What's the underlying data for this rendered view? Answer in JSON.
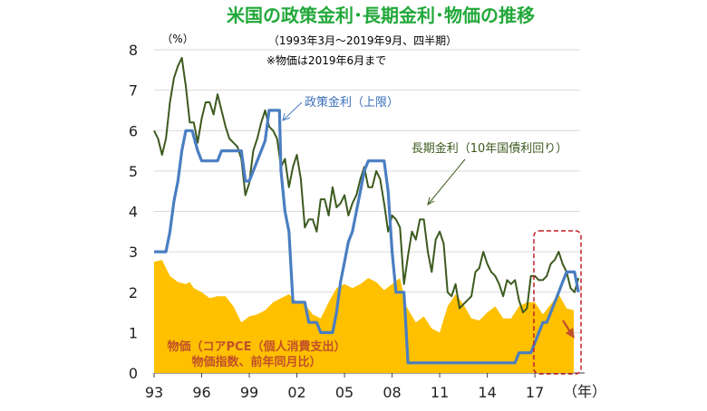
{
  "chart_data": {
    "type": "line",
    "title": "米国の政策金利･長期金利･物価の推移",
    "subtitle": "（1993年3月～2019年9月、四半期）",
    "note": "※物価は2019年6月まで",
    "y_unit": "（%）",
    "x_unit": "（年）",
    "ylim": [
      0,
      8
    ],
    "xlim": [
      1993.0,
      2019.85
    ],
    "yticks": [
      "0",
      "1",
      "2",
      "3",
      "4",
      "5",
      "6",
      "7",
      "8"
    ],
    "xticks": [
      {
        "label": "93",
        "value": 1993
      },
      {
        "label": "96",
        "value": 1996
      },
      {
        "label": "99",
        "value": 1999
      },
      {
        "label": "02",
        "value": 2002
      },
      {
        "label": "05",
        "value": 2005
      },
      {
        "label": "08",
        "value": 2008
      },
      {
        "label": "11",
        "value": 2011
      },
      {
        "label": "14",
        "value": 2014
      },
      {
        "label": "17",
        "value": 2017
      }
    ],
    "series": [
      {
        "name": "物価（コアPCE（個人消費支出）物価指数、前年同月比）",
        "kind": "area",
        "color": "#ffc000",
        "points": [
          [
            1993.0,
            2.75
          ],
          [
            1993.5,
            2.8
          ],
          [
            1993.75,
            2.6
          ],
          [
            1994.0,
            2.4
          ],
          [
            1994.5,
            2.25
          ],
          [
            1995.0,
            2.2
          ],
          [
            1995.25,
            2.25
          ],
          [
            1995.5,
            2.1
          ],
          [
            1996.0,
            2.0
          ],
          [
            1996.5,
            1.85
          ],
          [
            1997.0,
            1.9
          ],
          [
            1997.5,
            1.9
          ],
          [
            1998.0,
            1.65
          ],
          [
            1998.5,
            1.25
          ],
          [
            1999.0,
            1.4
          ],
          [
            1999.5,
            1.45
          ],
          [
            2000.0,
            1.55
          ],
          [
            2000.5,
            1.75
          ],
          [
            2001.0,
            1.85
          ],
          [
            2001.5,
            1.95
          ],
          [
            2002.0,
            1.75
          ],
          [
            2002.5,
            1.7
          ],
          [
            2003.0,
            1.45
          ],
          [
            2003.5,
            1.35
          ],
          [
            2004.0,
            1.75
          ],
          [
            2004.5,
            2.1
          ],
          [
            2005.0,
            2.2
          ],
          [
            2005.5,
            2.1
          ],
          [
            2006.0,
            2.2
          ],
          [
            2006.5,
            2.35
          ],
          [
            2007.0,
            2.25
          ],
          [
            2007.5,
            2.05
          ],
          [
            2008.0,
            2.2
          ],
          [
            2008.5,
            2.35
          ],
          [
            2008.9,
            1.65
          ],
          [
            2009.5,
            1.25
          ],
          [
            2010.0,
            1.4
          ],
          [
            2010.5,
            1.1
          ],
          [
            2011.0,
            1.0
          ],
          [
            2011.5,
            1.65
          ],
          [
            2012.0,
            1.95
          ],
          [
            2012.5,
            1.7
          ],
          [
            2013.0,
            1.35
          ],
          [
            2013.5,
            1.3
          ],
          [
            2014.0,
            1.5
          ],
          [
            2014.5,
            1.65
          ],
          [
            2015.0,
            1.35
          ],
          [
            2015.5,
            1.35
          ],
          [
            2016.0,
            1.65
          ],
          [
            2016.5,
            1.75
          ],
          [
            2017.0,
            1.75
          ],
          [
            2017.5,
            1.45
          ],
          [
            2018.0,
            1.7
          ],
          [
            2018.5,
            1.95
          ],
          [
            2019.0,
            1.6
          ],
          [
            2019.45,
            1.55
          ]
        ]
      },
      {
        "name": "長期金利（10年国債利回り）",
        "kind": "line",
        "color": "#3c5a1e",
        "points": [
          [
            1993.0,
            6.0
          ],
          [
            1993.25,
            5.8
          ],
          [
            1993.5,
            5.4
          ],
          [
            1993.75,
            5.8
          ],
          [
            1994.0,
            6.7
          ],
          [
            1994.25,
            7.3
          ],
          [
            1994.5,
            7.6
          ],
          [
            1994.75,
            7.8
          ],
          [
            1995.0,
            7.1
          ],
          [
            1995.25,
            6.2
          ],
          [
            1995.5,
            6.2
          ],
          [
            1995.75,
            5.7
          ],
          [
            1996.0,
            6.3
          ],
          [
            1996.25,
            6.7
          ],
          [
            1996.5,
            6.7
          ],
          [
            1996.75,
            6.4
          ],
          [
            1997.0,
            6.9
          ],
          [
            1997.25,
            6.5
          ],
          [
            1997.5,
            6.1
          ],
          [
            1997.75,
            5.8
          ],
          [
            1998.0,
            5.7
          ],
          [
            1998.25,
            5.6
          ],
          [
            1998.5,
            5.3
          ],
          [
            1998.75,
            4.4
          ],
          [
            1999.0,
            4.7
          ],
          [
            1999.25,
            5.5
          ],
          [
            1999.5,
            5.8
          ],
          [
            1999.75,
            6.2
          ],
          [
            2000.0,
            6.5
          ],
          [
            2000.25,
            6.1
          ],
          [
            2000.5,
            6.0
          ],
          [
            2000.75,
            5.8
          ],
          [
            2001.0,
            5.1
          ],
          [
            2001.25,
            5.3
          ],
          [
            2001.5,
            4.6
          ],
          [
            2001.75,
            5.1
          ],
          [
            2002.0,
            5.4
          ],
          [
            2002.25,
            4.8
          ],
          [
            2002.5,
            3.6
          ],
          [
            2002.75,
            3.8
          ],
          [
            2003.0,
            3.8
          ],
          [
            2003.25,
            3.5
          ],
          [
            2003.5,
            4.3
          ],
          [
            2003.75,
            4.3
          ],
          [
            2004.0,
            3.9
          ],
          [
            2004.25,
            4.6
          ],
          [
            2004.5,
            4.1
          ],
          [
            2004.75,
            4.2
          ],
          [
            2005.0,
            4.4
          ],
          [
            2005.25,
            3.9
          ],
          [
            2005.5,
            4.2
          ],
          [
            2005.75,
            4.4
          ],
          [
            2006.0,
            4.8
          ],
          [
            2006.25,
            5.1
          ],
          [
            2006.5,
            4.6
          ],
          [
            2006.75,
            4.6
          ],
          [
            2007.0,
            5.0
          ],
          [
            2007.25,
            4.8
          ],
          [
            2007.5,
            4.2
          ],
          [
            2007.75,
            3.5
          ],
          [
            2008.0,
            3.9
          ],
          [
            2008.25,
            3.8
          ],
          [
            2008.5,
            3.6
          ],
          [
            2008.75,
            2.2
          ],
          [
            2009.0,
            2.9
          ],
          [
            2009.25,
            3.5
          ],
          [
            2009.5,
            3.3
          ],
          [
            2009.75,
            3.8
          ],
          [
            2010.0,
            3.8
          ],
          [
            2010.25,
            3.0
          ],
          [
            2010.5,
            2.5
          ],
          [
            2010.75,
            3.3
          ],
          [
            2011.0,
            3.5
          ],
          [
            2011.25,
            3.2
          ],
          [
            2011.5,
            2.0
          ],
          [
            2011.75,
            1.9
          ],
          [
            2012.0,
            2.2
          ],
          [
            2012.25,
            1.6
          ],
          [
            2012.5,
            1.7
          ],
          [
            2012.75,
            1.8
          ],
          [
            2013.0,
            1.9
          ],
          [
            2013.25,
            2.5
          ],
          [
            2013.5,
            2.6
          ],
          [
            2013.75,
            3.0
          ],
          [
            2014.0,
            2.7
          ],
          [
            2014.25,
            2.5
          ],
          [
            2014.5,
            2.4
          ],
          [
            2014.75,
            2.2
          ],
          [
            2015.0,
            1.9
          ],
          [
            2015.25,
            2.3
          ],
          [
            2015.5,
            2.2
          ],
          [
            2015.75,
            2.3
          ],
          [
            2016.0,
            1.8
          ],
          [
            2016.25,
            1.5
          ],
          [
            2016.5,
            1.6
          ],
          [
            2016.75,
            2.4
          ],
          [
            2017.0,
            2.4
          ],
          [
            2017.25,
            2.3
          ],
          [
            2017.5,
            2.3
          ],
          [
            2017.75,
            2.4
          ],
          [
            2018.0,
            2.7
          ],
          [
            2018.25,
            2.8
          ],
          [
            2018.5,
            3.0
          ],
          [
            2018.75,
            2.7
          ],
          [
            2019.0,
            2.5
          ],
          [
            2019.25,
            2.1
          ],
          [
            2019.5,
            2.0
          ],
          [
            2019.75,
            2.35
          ]
        ]
      },
      {
        "name": "政策金利（上限）",
        "kind": "line",
        "color": "#4a7ec2",
        "points": [
          [
            1993.0,
            3.0
          ],
          [
            1993.75,
            3.0
          ],
          [
            1994.0,
            3.5
          ],
          [
            1994.25,
            4.25
          ],
          [
            1994.5,
            4.75
          ],
          [
            1994.75,
            5.5
          ],
          [
            1995.0,
            6.0
          ],
          [
            1995.4,
            6.0
          ],
          [
            1995.75,
            5.5
          ],
          [
            1996.0,
            5.25
          ],
          [
            1997.0,
            5.25
          ],
          [
            1997.25,
            5.5
          ],
          [
            1998.5,
            5.5
          ],
          [
            1998.75,
            4.75
          ],
          [
            1999.0,
            4.75
          ],
          [
            1999.5,
            5.25
          ],
          [
            1999.75,
            5.5
          ],
          [
            2000.0,
            5.75
          ],
          [
            2000.25,
            6.5
          ],
          [
            2000.9,
            6.5
          ],
          [
            2001.0,
            5.0
          ],
          [
            2001.25,
            4.0
          ],
          [
            2001.5,
            3.5
          ],
          [
            2001.75,
            1.75
          ],
          [
            2002.5,
            1.75
          ],
          [
            2002.75,
            1.25
          ],
          [
            2003.25,
            1.25
          ],
          [
            2003.5,
            1.0
          ],
          [
            2004.25,
            1.0
          ],
          [
            2004.5,
            1.5
          ],
          [
            2004.75,
            2.25
          ],
          [
            2005.0,
            2.75
          ],
          [
            2005.25,
            3.25
          ],
          [
            2005.5,
            3.5
          ],
          [
            2005.75,
            4.0
          ],
          [
            2006.0,
            4.5
          ],
          [
            2006.25,
            5.0
          ],
          [
            2006.5,
            5.25
          ],
          [
            2007.5,
            5.25
          ],
          [
            2007.75,
            4.5
          ],
          [
            2008.0,
            3.0
          ],
          [
            2008.25,
            2.0
          ],
          [
            2008.75,
            2.0
          ],
          [
            2009.0,
            0.25
          ],
          [
            2015.75,
            0.25
          ],
          [
            2016.0,
            0.5
          ],
          [
            2016.75,
            0.5
          ],
          [
            2017.0,
            0.75
          ],
          [
            2017.25,
            1.0
          ],
          [
            2017.5,
            1.25
          ],
          [
            2017.75,
            1.25
          ],
          [
            2018.0,
            1.5
          ],
          [
            2018.25,
            1.75
          ],
          [
            2018.5,
            2.0
          ],
          [
            2018.75,
            2.25
          ],
          [
            2019.0,
            2.5
          ],
          [
            2019.5,
            2.5
          ],
          [
            2019.75,
            2.0
          ]
        ]
      }
    ]
  },
  "labels": {
    "policy": "政策金利（上限）",
    "long": "長期金利（10年国債利回り）",
    "price_line1": "物価（コアPCE（個人消費支出）",
    "price_line2": "物価指数、前年同月比）"
  },
  "colors": {
    "title": "#22a83a",
    "highlight_box": "#c0202a",
    "arrow": "#c0502a"
  }
}
